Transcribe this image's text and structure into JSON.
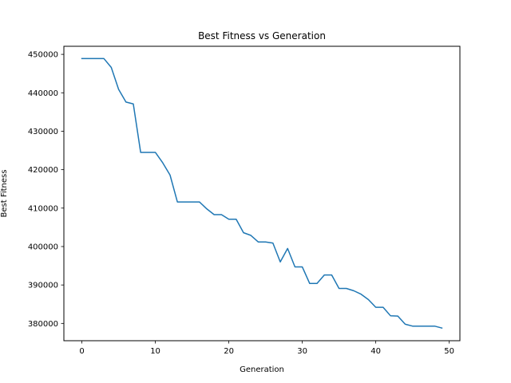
{
  "chart_data": {
    "type": "line",
    "title": "Best Fitness vs Generation",
    "xlabel": "Generation",
    "ylabel": "Best Fitness",
    "xlim": [
      -2.45,
      51.45
    ],
    "ylim": [
      375500,
      452100
    ],
    "xticks": [
      0,
      10,
      20,
      30,
      40,
      50
    ],
    "xtick_labels": [
      "0",
      "10",
      "20",
      "30",
      "40",
      "50"
    ],
    "yticks": [
      380000,
      390000,
      400000,
      410000,
      420000,
      430000,
      440000,
      450000
    ],
    "ytick_labels": [
      "380000",
      "390000",
      "400000",
      "410000",
      "420000",
      "430000",
      "440000",
      "450000"
    ],
    "grid": false,
    "line_color": "#1f77b4",
    "series": [
      {
        "x": [
          0,
          1,
          2,
          3,
          4,
          5,
          6,
          7,
          8,
          9,
          10,
          11,
          12,
          13,
          14,
          15,
          16,
          17,
          18,
          19,
          20,
          21,
          22,
          23,
          24,
          25,
          26,
          27,
          28,
          29,
          30,
          31,
          32,
          33,
          34,
          35,
          36,
          37,
          38,
          39,
          40,
          41,
          42,
          43,
          44,
          45,
          46,
          47,
          48,
          49
        ],
        "y": [
          448900,
          448900,
          448900,
          448900,
          446600,
          440900,
          437600,
          437100,
          424500,
          424500,
          424500,
          421800,
          418600,
          411600,
          411600,
          411600,
          411600,
          409800,
          408300,
          408300,
          407100,
          407100,
          403600,
          402900,
          401200,
          401200,
          400900,
          396000,
          399500,
          394700,
          394700,
          390400,
          390400,
          392600,
          392600,
          389100,
          389100,
          388500,
          387600,
          386200,
          384200,
          384200,
          382000,
          381900,
          379800,
          379300,
          379300,
          379300,
          379300,
          378800
        ]
      }
    ]
  }
}
